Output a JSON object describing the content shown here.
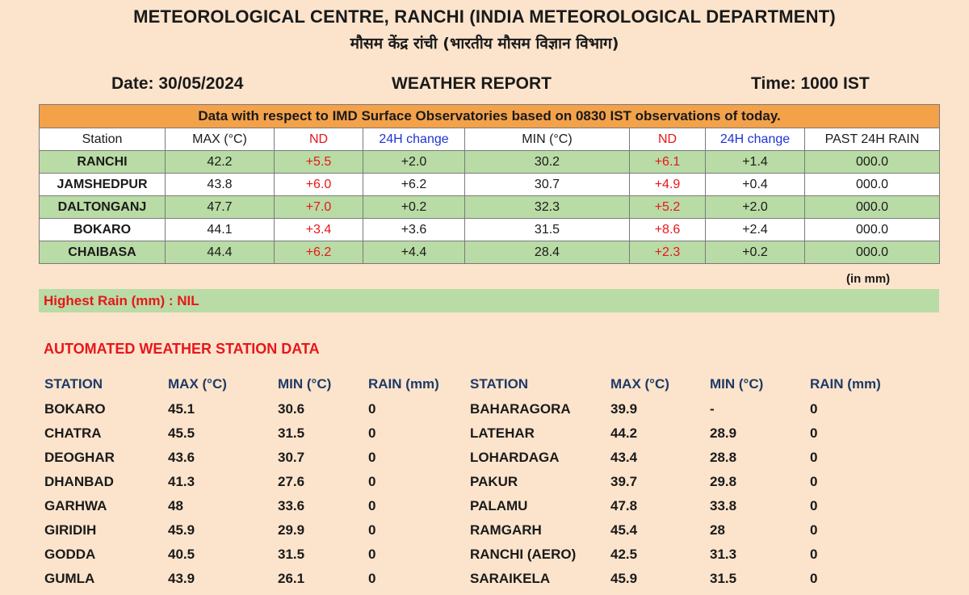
{
  "header": {
    "title_en": "METEOROLOGICAL CENTRE, RANCHI (INDIA METEOROLOGICAL DEPARTMENT)",
    "title_hi": "मौसम केंद्र रांची (भारतीय मौसम विज्ञान विभाग)",
    "date": "Date: 30/05/2024",
    "report": "WEATHER REPORT",
    "time": "Time: 1000 IST"
  },
  "obs_table": {
    "banner": "Data with respect to IMD Surface Observatories based on 0830 IST observations of today.",
    "columns": [
      "Station",
      "MAX (°C)",
      "ND",
      "24H change",
      "MIN (°C)",
      "ND",
      "24H change",
      "PAST 24H RAIN"
    ],
    "rows": [
      [
        "RANCHI",
        "42.2",
        "+5.5",
        "+2.0",
        "30.2",
        "+6.1",
        "+1.4",
        "000.0"
      ],
      [
        "JAMSHEDPUR",
        "43.8",
        "+6.0",
        "+6.2",
        "30.7",
        "+4.9",
        "+0.4",
        "000.0"
      ],
      [
        "DALTONGANJ",
        "47.7",
        "+7.0",
        "+0.2",
        "32.3",
        "+5.2",
        "+2.0",
        "000.0"
      ],
      [
        "BOKARO",
        "44.1",
        "+3.4",
        "+3.6",
        "31.5",
        "+8.6",
        "+2.4",
        "000.0"
      ],
      [
        "CHAIBASA",
        "44.4",
        "+6.2",
        "+4.4",
        "28.4",
        "+2.3",
        "+0.2",
        "000.0"
      ]
    ],
    "unit_note": "(in mm)"
  },
  "highest_rain": "Highest Rain (mm) : NIL",
  "aws": {
    "title": "AUTOMATED WEATHER STATION DATA",
    "columns": [
      "STATION",
      "MAX (°C)",
      "MIN (°C)",
      "RAIN (mm)",
      "STATION",
      "MAX (°C)",
      "MIN (°C)",
      "RAIN (mm)"
    ],
    "rows": [
      [
        "BOKARO",
        "45.1",
        "30.6",
        "0",
        "BAHARAGORA",
        "39.9",
        "-",
        "0"
      ],
      [
        "CHATRA",
        "45.5",
        "31.5",
        "0",
        "LATEHAR",
        "44.2",
        "28.9",
        "0"
      ],
      [
        "DEOGHAR",
        "43.6",
        "30.7",
        "0",
        "LOHARDAGA",
        "43.4",
        "28.8",
        "0"
      ],
      [
        "DHANBAD",
        "41.3",
        "27.6",
        "0",
        "PAKUR",
        "39.7",
        "29.8",
        "0"
      ],
      [
        "GARHWA",
        "48",
        "33.6",
        "0",
        "PALAMU",
        "47.8",
        "33.8",
        "0"
      ],
      [
        "GIRIDIH",
        "45.9",
        "29.9",
        "0",
        "RAMGARH",
        "45.4",
        "28",
        "0"
      ],
      [
        "GODDA",
        "40.5",
        "31.5",
        "0",
        "RANCHI (AERO)",
        "42.5",
        "31.3",
        "0"
      ],
      [
        "GUMLA",
        "43.9",
        "26.1",
        "0",
        "SARAIKELA",
        "45.9",
        "31.5",
        "0"
      ]
    ]
  },
  "colors": {
    "background": "#fce4cc",
    "banner": "#f4a24a",
    "green_row": "#b9dba5",
    "nd_red": "#e8161b",
    "change_blue": "#1f33d6"
  }
}
